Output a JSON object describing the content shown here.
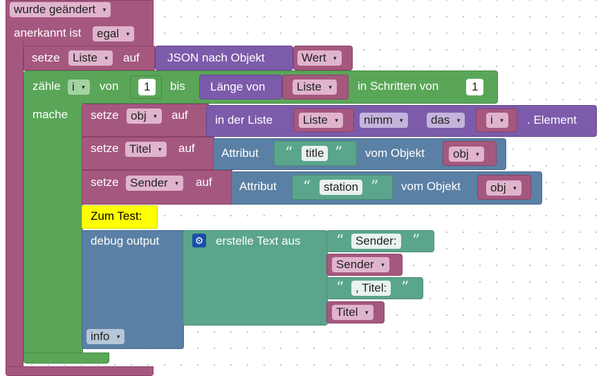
{
  "trigger": {
    "changed_label": "wurde geändert",
    "acknowledged_label": "anerkannt ist",
    "acknowledged_value": "egal"
  },
  "set_liste": {
    "setze": "setze",
    "var": "Liste",
    "auf": "auf",
    "json_label": "JSON nach Objekt",
    "value": "Wert"
  },
  "loop": {
    "zaehle": "zähle",
    "var": "i",
    "von": "von",
    "from": "1",
    "bis": "bis",
    "laenge_label": "Länge von",
    "laenge_var": "Liste",
    "step_label": "in Schritten von",
    "step": "1",
    "mache": "mache"
  },
  "set_obj": {
    "setze": "setze",
    "var": "obj",
    "auf": "auf",
    "list_label": "in der Liste",
    "list_var": "Liste",
    "mode": "nimm",
    "which": "das",
    "index_var": "i",
    "suffix": ". Element"
  },
  "set_titel": {
    "setze": "setze",
    "var": "Titel",
    "auf": "auf",
    "attr_label": "Attribut",
    "attr_text": "title",
    "of_label": "vom Objekt",
    "obj_var": "obj"
  },
  "set_sender": {
    "setze": "setze",
    "var": "Sender",
    "auf": "auf",
    "attr_label": "Attribut",
    "attr_text": "station",
    "of_label": "vom Objekt",
    "obj_var": "obj"
  },
  "comment": {
    "text": "Zum Test:"
  },
  "debug": {
    "label": "debug output",
    "create_text_label": "erstelle Text aus",
    "parts": {
      "text1": "Sender:",
      "var1": "Sender",
      "text2": ", Titel:",
      "var2": "Titel"
    },
    "level": "info"
  },
  "quote_open": "“",
  "quote_close": "”",
  "arrow": "▾",
  "icons": {
    "gear": "gear-icon"
  },
  "colors": {
    "variables": "#a5587f",
    "loops": "#5aa658",
    "lists": "#7c5bab",
    "objects": "#5b80a5",
    "text": "#5ba58c",
    "comment": "#ffff00"
  }
}
